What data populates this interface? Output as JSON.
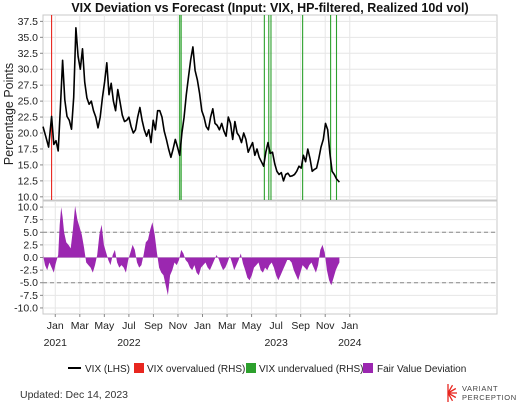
{
  "chart_data": {
    "type": "line",
    "title": "VIX Deviation vs Forecast (Input: VIX, HP-filtered, Realized 10d vol)",
    "ylabel": "Percentage Points",
    "top_panel": {
      "ylim": [
        9.5,
        38.5
      ],
      "yticks": [
        10.0,
        12.5,
        15.0,
        17.5,
        20.0,
        22.5,
        25.0,
        27.5,
        30.0,
        32.5,
        35.0,
        37.5
      ],
      "ytick_labels": [
        "10.0",
        "12.5",
        "15.0",
        "17.5",
        "20.0",
        "22.5",
        "25.0",
        "27.5",
        "30.0",
        "32.5",
        "35.0",
        "37.5"
      ]
    },
    "bottom_panel": {
      "ylim": [
        -11.2,
        11.2
      ],
      "yticks": [
        -10.0,
        -7.5,
        -5.0,
        -2.5,
        0.0,
        2.5,
        5.0,
        7.5,
        10.0
      ],
      "ytick_labels": [
        "-10.0",
        "-7.5",
        "-5.0",
        "-2.5",
        "0.0",
        "2.5",
        "5.0",
        "7.5",
        "10.0"
      ],
      "threshold_lines": [
        5,
        -5
      ]
    },
    "xlim": [
      2020.9167,
      2024.0
    ],
    "xticks": [
      {
        "x": 2021.0,
        "label": "Jan",
        "sub": "2021"
      },
      {
        "x": 2021.1667,
        "label": "Mar",
        "sub": ""
      },
      {
        "x": 2021.3333,
        "label": "May",
        "sub": ""
      },
      {
        "x": 2021.5,
        "label": "Jul",
        "sub": "2022"
      },
      {
        "x": 2021.6667,
        "label": "Sep",
        "sub": ""
      },
      {
        "x": 2021.8333,
        "label": "Nov",
        "sub": ""
      },
      {
        "x": 2022.0,
        "label": "Jan",
        "sub": ""
      },
      {
        "x": 2022.1667,
        "label": "Mar",
        "sub": ""
      },
      {
        "x": 2022.3333,
        "label": "May",
        "sub": ""
      },
      {
        "x": 2022.5,
        "label": "Jul",
        "sub": "2023"
      },
      {
        "x": 2022.6667,
        "label": "Sep",
        "sub": ""
      },
      {
        "x": 2022.8333,
        "label": "Nov",
        "sub": ""
      },
      {
        "x": 2023.0,
        "label": "Jan",
        "sub": "2024"
      }
    ],
    "vix_series": {
      "name": "VIX (LHS)",
      "x": [
        2020.9167,
        2020.935,
        2020.955,
        2020.975,
        2020.99,
        2021.005,
        2021.02,
        2021.035,
        2021.05,
        2021.065,
        2021.08,
        2021.095,
        2021.11,
        2021.125,
        2021.14,
        2021.155,
        2021.17,
        2021.185,
        2021.2,
        2021.215,
        2021.23,
        2021.245,
        2021.26,
        2021.275,
        2021.29,
        2021.305,
        2021.32,
        2021.335,
        2021.35,
        2021.365,
        2021.38,
        2021.395,
        2021.41,
        2021.425,
        2021.44,
        2021.455,
        2021.47,
        2021.485,
        2021.5,
        2021.515,
        2021.53,
        2021.545,
        2021.56,
        2021.575,
        2021.59,
        2021.605,
        2021.62,
        2021.635,
        2021.65,
        2021.665,
        2021.68,
        2021.695,
        2021.71,
        2021.725,
        2021.74,
        2021.755,
        2021.77,
        2021.785,
        2021.8,
        2021.815,
        2021.83,
        2021.845,
        2021.86,
        2021.875,
        2021.89,
        2021.905,
        2021.92,
        2021.935,
        2021.95,
        2021.965,
        2021.98,
        2021.995,
        2022.01,
        2022.025,
        2022.04,
        2022.055,
        2022.07,
        2022.085,
        2022.1,
        2022.115,
        2022.13,
        2022.145,
        2022.16,
        2022.175,
        2022.19,
        2022.205,
        2022.22,
        2022.235,
        2022.25,
        2022.265,
        2022.28,
        2022.295,
        2022.31,
        2022.325,
        2022.34,
        2022.355,
        2022.37,
        2022.385,
        2022.4,
        2022.415,
        2022.43,
        2022.445,
        2022.46,
        2022.475,
        2022.49,
        2022.505,
        2022.52,
        2022.535,
        2022.55,
        2022.565,
        2022.58,
        2022.595,
        2022.61,
        2022.625,
        2022.64,
        2022.655,
        2022.67,
        2022.685,
        2022.7,
        2022.715,
        2022.73,
        2022.745,
        2022.76,
        2022.775,
        2022.79,
        2022.805,
        2022.82,
        2022.835,
        2022.85,
        2022.865,
        2022.88,
        2022.895,
        2022.91,
        2022.93
      ],
      "y": [
        21.0,
        19.5,
        17.8,
        22.6,
        18.2,
        18.8,
        17.2,
        24.0,
        31.4,
        25.2,
        22.6,
        22.0,
        20.6,
        25.6,
        36.5,
        32.0,
        30.0,
        33.2,
        28.0,
        25.5,
        24.5,
        25.0,
        23.5,
        22.5,
        20.8,
        22.5,
        25.5,
        28.0,
        31.0,
        26.0,
        27.8,
        25.0,
        23.5,
        26.8,
        24.8,
        22.8,
        21.8,
        22.0,
        22.5,
        21.0,
        20.0,
        20.5,
        22.5,
        24.0,
        22.0,
        20.5,
        19.5,
        20.5,
        18.5,
        22.0,
        20.5,
        23.5,
        23.5,
        22.5,
        20.3,
        19.0,
        17.5,
        16.2,
        17.5,
        19.0,
        17.8,
        16.5,
        20.0,
        22.5,
        26.0,
        28.8,
        31.5,
        33.5,
        29.8,
        28.3,
        26.2,
        23.5,
        22.5,
        21.0,
        20.5,
        22.5,
        23.8,
        21.5,
        21.2,
        20.5,
        21.5,
        20.3,
        19.5,
        22.5,
        21.5,
        19.0,
        21.8,
        20.0,
        19.5,
        18.5,
        20.0,
        19.0,
        17.0,
        17.8,
        18.5,
        16.5,
        17.5,
        16.2,
        15.5,
        14.8,
        17.0,
        18.5,
        16.8,
        17.0,
        15.2,
        14.0,
        13.5,
        13.8,
        12.5,
        13.5,
        13.7,
        13.2,
        13.3,
        13.5,
        14.0,
        14.8,
        14.5,
        16.5,
        15.5,
        17.5,
        16.0,
        14.0,
        14.3,
        14.5,
        16.0,
        17.8,
        19.0,
        21.5,
        20.5,
        16.8,
        14.0,
        13.5,
        12.8,
        12.3
      ]
    },
    "deviation_series": {
      "name": "Fair Value Deviation",
      "x": [
        2020.9167,
        2020.93,
        2020.945,
        2020.96,
        2020.975,
        2020.99,
        2021.0,
        2021.01,
        2021.02,
        2021.03,
        2021.04,
        2021.05,
        2021.06,
        2021.075,
        2021.09,
        2021.105,
        2021.12,
        2021.135,
        2021.15,
        2021.165,
        2021.18,
        2021.195,
        2021.21,
        2021.225,
        2021.24,
        2021.255,
        2021.27,
        2021.285,
        2021.3,
        2021.315,
        2021.33,
        2021.345,
        2021.36,
        2021.375,
        2021.39,
        2021.405,
        2021.42,
        2021.435,
        2021.45,
        2021.465,
        2021.48,
        2021.495,
        2021.51,
        2021.525,
        2021.54,
        2021.555,
        2021.57,
        2021.585,
        2021.6,
        2021.615,
        2021.63,
        2021.645,
        2021.66,
        2021.675,
        2021.69,
        2021.705,
        2021.72,
        2021.735,
        2021.75,
        2021.765,
        2021.78,
        2021.795,
        2021.81,
        2021.825,
        2021.84,
        2021.855,
        2021.87,
        2021.885,
        2021.9,
        2021.915,
        2021.93,
        2021.945,
        2021.96,
        2021.975,
        2021.99,
        2022.005,
        2022.02,
        2022.035,
        2022.05,
        2022.065,
        2022.08,
        2022.095,
        2022.11,
        2022.125,
        2022.14,
        2022.155,
        2022.17,
        2022.185,
        2022.2,
        2022.215,
        2022.23,
        2022.245,
        2022.26,
        2022.275,
        2022.29,
        2022.305,
        2022.32,
        2022.335,
        2022.35,
        2022.365,
        2022.38,
        2022.395,
        2022.41,
        2022.425,
        2022.44,
        2022.455,
        2022.47,
        2022.485,
        2022.5,
        2022.515,
        2022.53,
        2022.545,
        2022.56,
        2022.575,
        2022.59,
        2022.605,
        2022.62,
        2022.635,
        2022.65,
        2022.665,
        2022.68,
        2022.695,
        2022.71,
        2022.725,
        2022.74,
        2022.755,
        2022.77,
        2022.785,
        2022.8,
        2022.815,
        2022.83,
        2022.845,
        2022.86,
        2022.875,
        2022.89,
        2022.905,
        2022.92,
        2022.93
      ],
      "y": [
        0.5,
        -1.5,
        -2.5,
        -1.0,
        -2.0,
        -3.0,
        -1.5,
        -0.5,
        0.5,
        6.5,
        10.0,
        8.0,
        5.0,
        3.0,
        2.5,
        1.8,
        5.5,
        10.2,
        7.5,
        6.0,
        4.5,
        2.0,
        -1.0,
        -1.5,
        -2.0,
        -3.0,
        -1.5,
        0.5,
        4.5,
        6.5,
        2.5,
        1.0,
        -0.5,
        -1.5,
        0.5,
        1.5,
        -1.0,
        -2.0,
        -1.5,
        -2.0,
        -3.0,
        -0.5,
        1.0,
        2.5,
        1.5,
        -1.0,
        -2.0,
        -1.5,
        0.5,
        3.0,
        3.5,
        5.5,
        7.0,
        4.5,
        1.0,
        -2.0,
        -3.0,
        -3.5,
        -5.5,
        -7.5,
        -3.5,
        -2.5,
        -1.0,
        -1.5,
        -0.5,
        1.5,
        0.8,
        -0.5,
        -1.0,
        -2.0,
        -2.5,
        -1.5,
        -3.0,
        -3.5,
        -2.0,
        -1.5,
        -1.0,
        -2.0,
        -2.5,
        -1.5,
        -0.5,
        0.5,
        -0.3,
        -1.5,
        -2.5,
        -2.0,
        -1.0,
        0.3,
        -1.0,
        -2.5,
        -1.5,
        -0.5,
        0.8,
        -1.2,
        -2.5,
        -4.0,
        -4.5,
        -3.5,
        -2.0,
        -1.5,
        -1.0,
        -2.5,
        -3.0,
        -2.0,
        -2.5,
        -1.5,
        -1.0,
        -2.0,
        -3.5,
        -4.5,
        -3.5,
        -2.5,
        -1.5,
        -0.5,
        -0.5,
        -1.0,
        -2.5,
        -3.5,
        -4.5,
        -3.0,
        -1.5,
        -2.0,
        -2.5,
        -1.5,
        -1.0,
        -2.0,
        -3.0,
        -1.5,
        1.5,
        2.5,
        1.0,
        -2.5,
        -4.5,
        -5.5,
        -4.0,
        -2.5,
        -1.5,
        -1.0
      ]
    },
    "vix_overvalued_dates": [
      2020.975
    ],
    "vix_undervalued_dates": [
      2021.845,
      2021.855,
      2022.42,
      2022.45,
      2022.465,
      2022.68,
      2022.87,
      2022.91
    ],
    "legend": [
      {
        "label": "VIX (LHS)",
        "color": "#000000",
        "kind": "line"
      },
      {
        "label": "VIX overvalued (RHS)",
        "color": "#e8261f",
        "kind": "square"
      },
      {
        "label": "VIX undervalued (RHS)",
        "color": "#2ca02c",
        "kind": "square"
      },
      {
        "label": "Fair Value Deviation",
        "color": "#8e24aa",
        "kind": "square"
      }
    ],
    "legend_position": "bottom"
  },
  "footer": {
    "updated": "Updated: Dec 14, 2023",
    "brand_line1": "VARIANT",
    "brand_line2": "PERCEPTION"
  },
  "colors": {
    "vix_line": "#000000",
    "overvalued": "#e8261f",
    "undervalued": "#2ca02c",
    "deviation_fill": "#9b27b0",
    "grid": "#e6e6e6",
    "threshold": "#888888",
    "brand_mark": "#e8261f"
  }
}
